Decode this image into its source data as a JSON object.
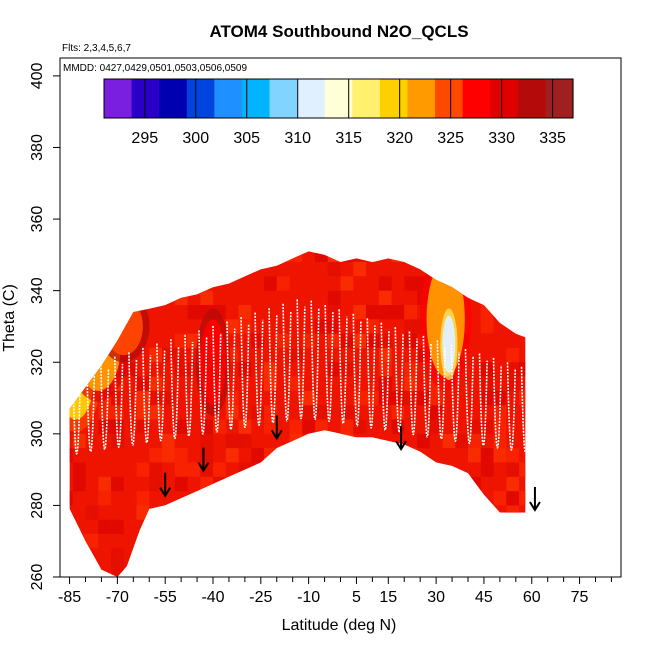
{
  "chart_data": {
    "type": "heatmap",
    "title": "ATOM4 Southbound N2O_QCLS",
    "flights_label": "Flts: 2,3,4,5,6,7",
    "dates_label": "MMDD: 0427,0429,0501,0503,0506,0509",
    "xlabel": "Latitude (deg N)",
    "ylabel": "Theta (C)",
    "xlim": [
      -88,
      88
    ],
    "ylim": [
      260,
      405
    ],
    "x_ticks": [
      -85,
      -70,
      -55,
      -40,
      -25,
      -10,
      5,
      15,
      30,
      45,
      60,
      75
    ],
    "x_minor_ticks": [
      -80,
      -75,
      -65,
      -60,
      -50,
      -45,
      -35,
      -30,
      -20,
      -15,
      -5,
      0,
      10,
      20,
      25,
      35,
      40,
      50,
      55,
      65,
      70,
      80,
      85
    ],
    "y_ticks": [
      260,
      280,
      300,
      320,
      340,
      360,
      380,
      400
    ],
    "colorbar": {
      "range": [
        291,
        337
      ],
      "ticks": [
        295,
        300,
        305,
        310,
        315,
        320,
        325,
        330,
        335
      ],
      "colors": [
        "#7a1ee0",
        "#2a00c8",
        "#0000b0",
        "#0044e0",
        "#1e90ff",
        "#00b4ff",
        "#80d4ff",
        "#e0f0ff",
        "#ffffd8",
        "#fff06e",
        "#ffd000",
        "#ff9a00",
        "#ff4800",
        "#ff0000",
        "#e00000",
        "#b40a0a",
        "#a02020"
      ]
    },
    "coverage": {
      "top": [
        [
          -85,
          307
        ],
        [
          -80,
          313
        ],
        [
          -75,
          319
        ],
        [
          -70,
          326
        ],
        [
          -65,
          334
        ],
        [
          -60,
          335
        ],
        [
          -55,
          336
        ],
        [
          -50,
          338
        ],
        [
          -45,
          339
        ],
        [
          -40,
          341
        ],
        [
          -35,
          342
        ],
        [
          -30,
          344
        ],
        [
          -25,
          346
        ],
        [
          -20,
          347
        ],
        [
          -15,
          349
        ],
        [
          -10,
          351
        ],
        [
          -5,
          350
        ],
        [
          0,
          348
        ],
        [
          5,
          349
        ],
        [
          10,
          348
        ],
        [
          15,
          349
        ],
        [
          20,
          348
        ],
        [
          25,
          346
        ],
        [
          30,
          343
        ],
        [
          35,
          341
        ],
        [
          40,
          338
        ],
        [
          45,
          336
        ],
        [
          50,
          331
        ],
        [
          55,
          328
        ],
        [
          58,
          327
        ]
      ],
      "bottom": [
        [
          58,
          278
        ],
        [
          54,
          278
        ],
        [
          50,
          278
        ],
        [
          45,
          283
        ],
        [
          40,
          289
        ],
        [
          35,
          291
        ],
        [
          30,
          292
        ],
        [
          25,
          295
        ],
        [
          20,
          297
        ],
        [
          15,
          298
        ],
        [
          10,
          299
        ],
        [
          5,
          299
        ],
        [
          0,
          300
        ],
        [
          -5,
          301
        ],
        [
          -10,
          300
        ],
        [
          -15,
          298
        ],
        [
          -20,
          296
        ],
        [
          -25,
          292
        ],
        [
          -30,
          290
        ],
        [
          -35,
          288
        ],
        [
          -40,
          286
        ],
        [
          -45,
          284
        ],
        [
          -50,
          282
        ],
        [
          -55,
          280
        ],
        [
          -60,
          279
        ],
        [
          -63,
          273
        ],
        [
          -67,
          263
        ],
        [
          -70,
          260
        ],
        [
          -75,
          262
        ],
        [
          -80,
          270
        ],
        [
          -85,
          279
        ]
      ],
      "hotspots": [
        {
          "lat": -83,
          "theta": 318,
          "rx": 6,
          "ry": 14,
          "value": 320
        },
        {
          "lat": -76,
          "theta": 324,
          "rx": 7,
          "ry": 12,
          "value": 323
        },
        {
          "lat": -68,
          "theta": 330,
          "rx": 6,
          "ry": 8,
          "value": 326
        },
        {
          "lat": -40,
          "theta": 320,
          "rx": 4,
          "ry": 12,
          "value": 327
        },
        {
          "lat": 33,
          "theta": 332,
          "rx": 6,
          "ry": 16,
          "value": 322
        },
        {
          "lat": 34,
          "theta": 325,
          "rx": 2,
          "ry": 8,
          "value": 312
        }
      ]
    },
    "arrows": [
      {
        "lat": -55,
        "theta": 283
      },
      {
        "lat": -43,
        "theta": 290
      },
      {
        "lat": -20,
        "theta": 299
      },
      {
        "lat": 19,
        "theta": 296
      },
      {
        "lat": 61,
        "theta": 279
      }
    ]
  }
}
